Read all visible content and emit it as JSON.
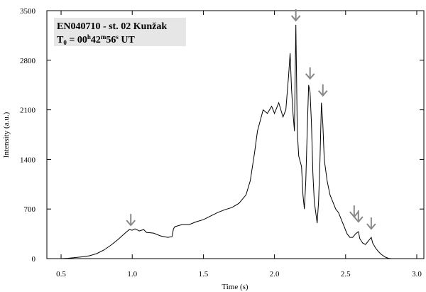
{
  "chart_data": {
    "type": "line",
    "title_line1": "EN040710 - st. 02 Kunžak",
    "title_line2": "T",
    "title_line2_sub": "0",
    "title_line2_mid": " = 00",
    "title_line2_h": "h",
    "title_line2_m_val": "42",
    "title_line2_m": "m",
    "title_line2_s_val": "56",
    "title_line2_s": "s",
    "title_line2_tail": " UT",
    "xlabel": "Time (s)",
    "ylabel": "Intensity (a.u.)",
    "xlim": [
      0.4,
      3.05
    ],
    "ylim": [
      0,
      3500
    ],
    "x_ticks": [
      0.5,
      1.0,
      1.5,
      2.0,
      2.5,
      3.0
    ],
    "x_tick_labels": [
      "0.5",
      "1.0",
      "1.5",
      "2.0",
      "2.5",
      "3.0"
    ],
    "y_ticks": [
      0,
      700,
      1400,
      2100,
      2800,
      3500
    ],
    "y_tick_labels": [
      "0",
      "700",
      "1400",
      "2100",
      "2800",
      "3500"
    ],
    "grid": false,
    "line_color": "#000000",
    "arrow_color": "#888888",
    "series": [
      {
        "points": [
          [
            0.5,
            0
          ],
          [
            0.55,
            5
          ],
          [
            0.6,
            15
          ],
          [
            0.65,
            25
          ],
          [
            0.7,
            40
          ],
          [
            0.75,
            70
          ],
          [
            0.8,
            120
          ],
          [
            0.85,
            190
          ],
          [
            0.9,
            270
          ],
          [
            0.95,
            360
          ],
          [
            0.98,
            410
          ],
          [
            1.0,
            400
          ],
          [
            1.02,
            420
          ],
          [
            1.05,
            390
          ],
          [
            1.08,
            410
          ],
          [
            1.1,
            370
          ],
          [
            1.15,
            360
          ],
          [
            1.2,
            320
          ],
          [
            1.25,
            300
          ],
          [
            1.28,
            310
          ],
          [
            1.29,
            420
          ],
          [
            1.3,
            450
          ],
          [
            1.35,
            480
          ],
          [
            1.4,
            480
          ],
          [
            1.45,
            520
          ],
          [
            1.5,
            550
          ],
          [
            1.55,
            600
          ],
          [
            1.6,
            650
          ],
          [
            1.65,
            690
          ],
          [
            1.7,
            720
          ],
          [
            1.75,
            780
          ],
          [
            1.8,
            900
          ],
          [
            1.83,
            1100
          ],
          [
            1.86,
            1500
          ],
          [
            1.88,
            1800
          ],
          [
            1.9,
            1950
          ],
          [
            1.92,
            2100
          ],
          [
            1.95,
            2050
          ],
          [
            1.98,
            2150
          ],
          [
            2.0,
            2050
          ],
          [
            2.03,
            2200
          ],
          [
            2.06,
            2000
          ],
          [
            2.08,
            2100
          ],
          [
            2.1,
            2600
          ],
          [
            2.11,
            2900
          ],
          [
            2.12,
            2400
          ],
          [
            2.13,
            2050
          ],
          [
            2.14,
            1800
          ],
          [
            2.15,
            3300
          ],
          [
            2.16,
            1800
          ],
          [
            2.17,
            1450
          ],
          [
            2.19,
            1300
          ],
          [
            2.2,
            900
          ],
          [
            2.21,
            700
          ],
          [
            2.22,
            1100
          ],
          [
            2.23,
            1800
          ],
          [
            2.24,
            2450
          ],
          [
            2.25,
            2350
          ],
          [
            2.26,
            1900
          ],
          [
            2.27,
            1200
          ],
          [
            2.28,
            800
          ],
          [
            2.3,
            500
          ],
          [
            2.31,
            800
          ],
          [
            2.32,
            1400
          ],
          [
            2.33,
            2200
          ],
          [
            2.34,
            1900
          ],
          [
            2.35,
            1400
          ],
          [
            2.37,
            1100
          ],
          [
            2.39,
            900
          ],
          [
            2.41,
            800
          ],
          [
            2.43,
            700
          ],
          [
            2.45,
            650
          ],
          [
            2.47,
            550
          ],
          [
            2.49,
            450
          ],
          [
            2.51,
            350
          ],
          [
            2.53,
            300
          ],
          [
            2.55,
            300
          ],
          [
            2.57,
            350
          ],
          [
            2.59,
            380
          ],
          [
            2.6,
            280
          ],
          [
            2.62,
            220
          ],
          [
            2.64,
            200
          ],
          [
            2.66,
            250
          ],
          [
            2.68,
            300
          ],
          [
            2.69,
            220
          ],
          [
            2.71,
            150
          ],
          [
            2.73,
            100
          ],
          [
            2.75,
            60
          ],
          [
            2.78,
            20
          ],
          [
            2.8,
            5
          ],
          [
            2.82,
            0
          ]
        ]
      }
    ],
    "arrows": [
      {
        "x": 0.99,
        "y": 430
      },
      {
        "x": 2.15,
        "y": 3320
      },
      {
        "x": 2.25,
        "y": 2500
      },
      {
        "x": 2.34,
        "y": 2260
      },
      {
        "x": 2.56,
        "y": 550
      },
      {
        "x": 2.59,
        "y": 480
      },
      {
        "x": 2.68,
        "y": 380
      }
    ]
  }
}
